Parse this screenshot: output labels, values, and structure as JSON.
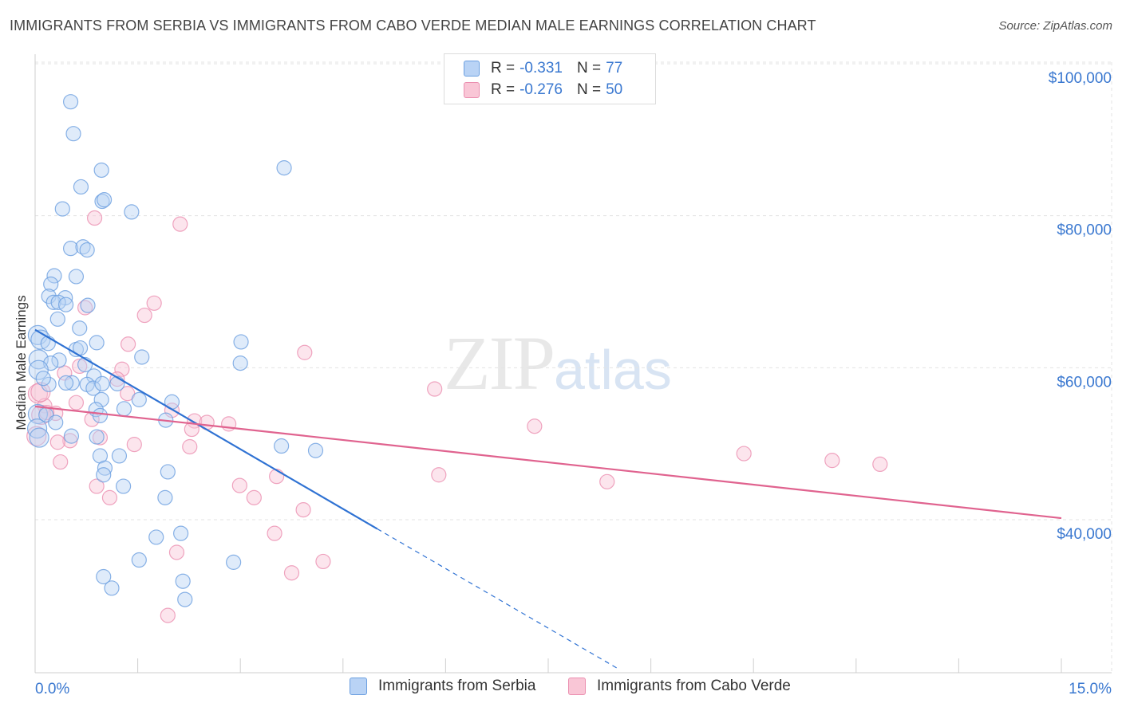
{
  "title": "IMMIGRANTS FROM SERBIA VS IMMIGRANTS FROM CABO VERDE MEDIAN MALE EARNINGS CORRELATION CHART",
  "source": "Source: ZipAtlas.com",
  "watermark": {
    "zip": "ZIP",
    "atlas": "atlas"
  },
  "legend": {
    "rows": [
      {
        "r_label": "R =",
        "r_value": "-0.331",
        "n_label": "N =",
        "n_value": "77"
      },
      {
        "r_label": "R =",
        "r_value": "-0.276",
        "n_label": "N =",
        "n_value": "50"
      }
    ]
  },
  "colors": {
    "serbia_fill": "#b9d3f5",
    "serbia_stroke": "#6b9fe0",
    "serbia_line": "#2f72d3",
    "cabo_fill": "#f9c6d6",
    "cabo_stroke": "#eb8fb0",
    "cabo_line": "#e0638f",
    "axis_label": "#3a78d0",
    "grid": "#e3e3e3"
  },
  "chart_data": {
    "type": "scatter",
    "title": "IMMIGRANTS FROM SERBIA VS IMMIGRANTS FROM CABO VERDE MEDIAN MALE EARNINGS CORRELATION CHART",
    "xlabel": "",
    "ylabel": "Median Male Earnings",
    "xlim": [
      0,
      15
    ],
    "ylim": [
      20000,
      104000
    ],
    "x_tick_labels": [
      "0.0%",
      "15.0%"
    ],
    "y_ticks": [
      {
        "value": 40000,
        "label": "$40,000"
      },
      {
        "value": 60000,
        "label": "$60,000"
      },
      {
        "value": 80000,
        "label": "$80,000"
      },
      {
        "value": 100000,
        "label": "$100,000"
      }
    ],
    "grid": true,
    "series": [
      {
        "name": "Immigrants from Serbia",
        "color": "#6b9fe0",
        "points": [
          [
            0.52,
            95000
          ],
          [
            0.56,
            90800
          ],
          [
            0.97,
            86000
          ],
          [
            3.64,
            86300
          ],
          [
            0.67,
            83800
          ],
          [
            0.98,
            81900
          ],
          [
            1.01,
            82100
          ],
          [
            0.4,
            80900
          ],
          [
            1.41,
            80500
          ],
          [
            0.52,
            75700
          ],
          [
            0.7,
            75900
          ],
          [
            0.76,
            75500
          ],
          [
            0.6,
            72000
          ],
          [
            0.28,
            72100
          ],
          [
            0.23,
            71000
          ],
          [
            0.2,
            69400
          ],
          [
            0.44,
            69200
          ],
          [
            0.27,
            68600
          ],
          [
            0.34,
            68600
          ],
          [
            0.45,
            68300
          ],
          [
            0.77,
            68200
          ],
          [
            0.33,
            66400
          ],
          [
            0.65,
            65200
          ],
          [
            0.04,
            64300
          ],
          [
            0.08,
            63700
          ],
          [
            0.19,
            63200
          ],
          [
            0.9,
            63300
          ],
          [
            3.01,
            63400
          ],
          [
            0.6,
            62400
          ],
          [
            0.05,
            61100
          ],
          [
            1.56,
            61400
          ],
          [
            0.35,
            61000
          ],
          [
            3.0,
            60600
          ],
          [
            0.23,
            60600
          ],
          [
            0.73,
            60400
          ],
          [
            0.05,
            59700
          ],
          [
            0.86,
            58900
          ],
          [
            0.54,
            58000
          ],
          [
            0.45,
            58000
          ],
          [
            0.2,
            57800
          ],
          [
            0.76,
            57800
          ],
          [
            0.85,
            57300
          ],
          [
            1.2,
            57900
          ],
          [
            0.98,
            57900
          ],
          [
            1.52,
            55800
          ],
          [
            0.97,
            55800
          ],
          [
            2.0,
            55500
          ],
          [
            1.3,
            54600
          ],
          [
            0.89,
            54500
          ],
          [
            0.04,
            53900
          ],
          [
            0.16,
            53800
          ],
          [
            0.95,
            53700
          ],
          [
            1.91,
            53100
          ],
          [
            0.53,
            51000
          ],
          [
            0.9,
            50900
          ],
          [
            3.6,
            49700
          ],
          [
            4.1,
            49100
          ],
          [
            0.95,
            48400
          ],
          [
            1.23,
            48400
          ],
          [
            1.02,
            46800
          ],
          [
            1.0,
            45900
          ],
          [
            1.94,
            46300
          ],
          [
            1.29,
            44400
          ],
          [
            1.9,
            42900
          ],
          [
            2.13,
            38200
          ],
          [
            1.77,
            37700
          ],
          [
            1.52,
            34700
          ],
          [
            2.9,
            34400
          ],
          [
            1.0,
            32500
          ],
          [
            2.16,
            31900
          ],
          [
            1.12,
            31000
          ],
          [
            2.19,
            29500
          ],
          [
            0.03,
            52000
          ],
          [
            0.06,
            50800
          ],
          [
            0.3,
            52800
          ],
          [
            0.12,
            58600
          ],
          [
            0.66,
            62600
          ]
        ],
        "trendline": {
          "x": [
            0.0,
            5.0
          ],
          "y": [
            65000,
            38800
          ],
          "dashed_extension": {
            "x": [
              5.0,
              8.5
            ],
            "y": [
              38800,
              20500
            ]
          }
        }
      },
      {
        "name": "Immigrants from Cabo Verde",
        "color": "#eb8fb0",
        "points": [
          [
            0.87,
            79700
          ],
          [
            2.12,
            78900
          ],
          [
            1.74,
            68500
          ],
          [
            0.73,
            67900
          ],
          [
            1.6,
            66900
          ],
          [
            1.36,
            63100
          ],
          [
            3.94,
            62000
          ],
          [
            0.65,
            60200
          ],
          [
            1.27,
            59800
          ],
          [
            0.43,
            59300
          ],
          [
            1.2,
            58500
          ],
          [
            5.84,
            57200
          ],
          [
            0.04,
            56600
          ],
          [
            1.35,
            56600
          ],
          [
            0.6,
            55400
          ],
          [
            0.14,
            55000
          ],
          [
            2.0,
            54400
          ],
          [
            0.3,
            54000
          ],
          [
            0.09,
            53800
          ],
          [
            0.83,
            53200
          ],
          [
            2.33,
            53000
          ],
          [
            2.51,
            52800
          ],
          [
            2.83,
            52600
          ],
          [
            7.3,
            52300
          ],
          [
            2.29,
            51900
          ],
          [
            0.95,
            50800
          ],
          [
            0.51,
            50400
          ],
          [
            0.33,
            50200
          ],
          [
            1.45,
            49900
          ],
          [
            2.26,
            49600
          ],
          [
            10.36,
            48700
          ],
          [
            11.65,
            47800
          ],
          [
            12.35,
            47300
          ],
          [
            0.37,
            47600
          ],
          [
            3.53,
            45700
          ],
          [
            5.9,
            45900
          ],
          [
            8.36,
            45000
          ],
          [
            2.99,
            44500
          ],
          [
            0.9,
            44400
          ],
          [
            1.09,
            42900
          ],
          [
            3.2,
            42900
          ],
          [
            3.92,
            41300
          ],
          [
            3.5,
            38200
          ],
          [
            2.07,
            35700
          ],
          [
            4.21,
            34500
          ],
          [
            3.75,
            33000
          ],
          [
            1.94,
            27400
          ],
          [
            0.02,
            51000
          ],
          [
            0.08,
            56800
          ],
          [
            0.17,
            54100
          ]
        ],
        "trendline": {
          "x": [
            0.0,
            15.0
          ],
          "y": [
            54900,
            40200
          ]
        }
      }
    ]
  },
  "bottom_legend": {
    "serbia": "Immigrants from Serbia",
    "cabo": "Immigrants from Cabo Verde"
  }
}
